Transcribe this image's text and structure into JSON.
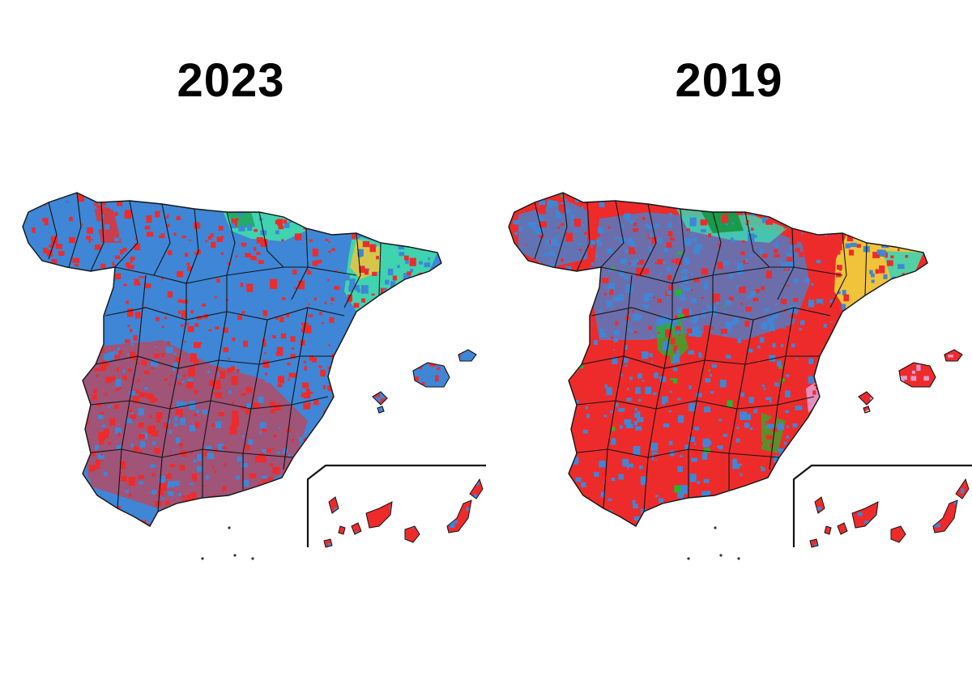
{
  "maps": [
    {
      "year": "2023",
      "base": "#3f86d6",
      "fills": {
        "blue": "#3f86d6",
        "red": "#ee2b2b",
        "teal": "#3fd3b0",
        "green": "#1a9a4a",
        "yellow": "#f0c33a",
        "pink": "#e39ad0",
        "lime": "#22b82c"
      },
      "red_share": 0.4
    },
    {
      "year": "2019",
      "base": "#ee2b2b",
      "fills": {
        "blue": "#3f86d6",
        "red": "#ee2b2b",
        "teal": "#3fd3b0",
        "green": "#1a9a4a",
        "yellow": "#f0c33a",
        "pink": "#e39ad0",
        "lime": "#22b82c"
      },
      "red_share": 0.7
    }
  ]
}
